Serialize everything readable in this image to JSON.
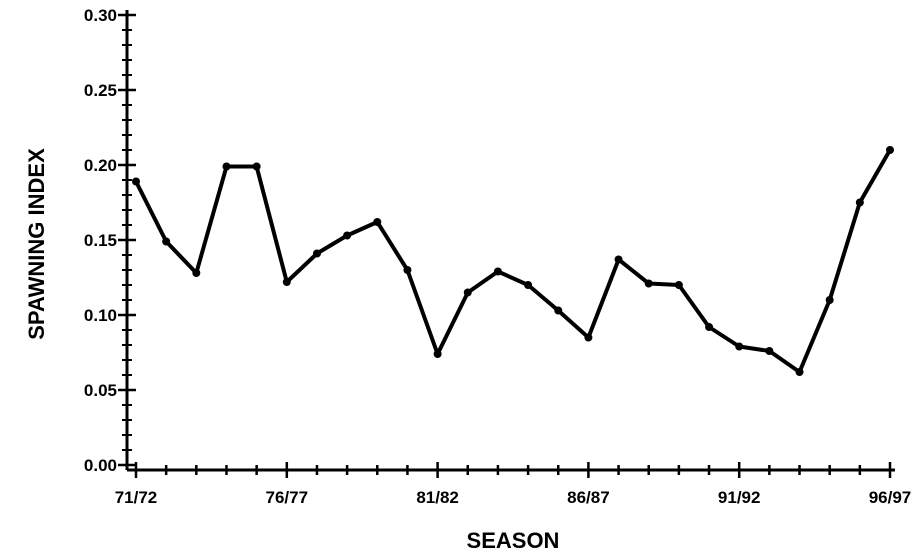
{
  "chart_data": {
    "type": "line",
    "xlabel": "SEASON",
    "ylabel": "SPAWNING INDEX",
    "ylim": [
      0,
      0.3
    ],
    "yticks": [
      "0.00",
      "0.05",
      "0.10",
      "0.15",
      "0.20",
      "0.25",
      "0.30"
    ],
    "xtick_labels": [
      "71/72",
      "76/77",
      "81/82",
      "86/87",
      "91/92",
      "96/97"
    ],
    "grid": false,
    "line_color": "#000000",
    "series": [
      {
        "x": [
          "71/72",
          "72/73",
          "73/74",
          "74/75",
          "75/76",
          "76/77",
          "77/78",
          "78/79",
          "79/80",
          "80/81",
          "81/82",
          "82/83",
          "83/84",
          "84/85",
          "85/86",
          "86/87",
          "87/88",
          "88/89",
          "89/90",
          "90/91",
          "91/92",
          "92/93",
          "93/94",
          "94/95",
          "95/96",
          "96/97"
        ],
        "values": [
          0.189,
          0.149,
          0.128,
          0.199,
          0.199,
          0.122,
          0.141,
          0.153,
          0.162,
          0.13,
          0.074,
          0.115,
          0.129,
          0.12,
          0.103,
          0.085,
          0.137,
          0.121,
          0.12,
          0.092,
          0.079,
          0.076,
          0.062,
          0.11,
          0.175,
          0.21
        ]
      }
    ]
  }
}
